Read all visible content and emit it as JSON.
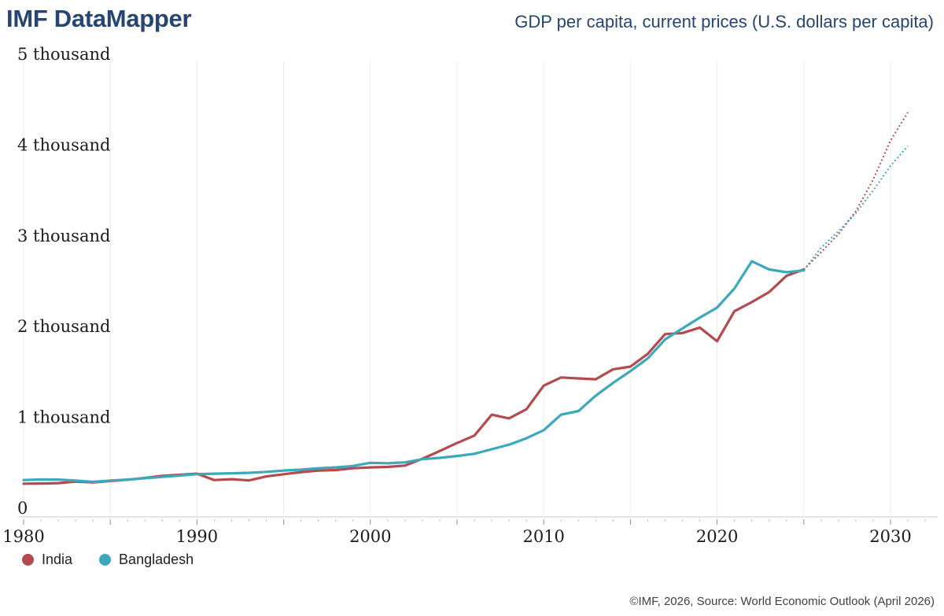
{
  "header": {
    "app_title": "IMF DataMapper",
    "chart_title": "GDP per capita, current prices (U.S. dollars per capita)"
  },
  "legend": {
    "items": [
      {
        "label": "India",
        "color": "#b34a4f"
      },
      {
        "label": "Bangladesh",
        "color": "#3ba8bc"
      }
    ]
  },
  "footer": {
    "source": "©IMF, 2026, Source: World Economic Outlook (April 2026)"
  },
  "chart_data": {
    "type": "line",
    "title": "GDP per capita, current prices (U.S. dollars per capita)",
    "units": "U.S. dollars per capita",
    "grid": "vertical-only",
    "legend_position": "bottom-left",
    "ylim": [
      0,
      5000
    ],
    "y_ticks": [
      {
        "value": 0,
        "label": "0"
      },
      {
        "value": 1000,
        "label": "1 thousand"
      },
      {
        "value": 2000,
        "label": "2 thousand"
      },
      {
        "value": 3000,
        "label": "3 thousand"
      },
      {
        "value": 4000,
        "label": "4 thousand"
      },
      {
        "value": 5000,
        "label": "5 thousand"
      }
    ],
    "x_tick_labels": [
      1980,
      1990,
      2000,
      2010,
      2020,
      2030
    ],
    "gridline_years": [
      1980,
      1985,
      1990,
      1995,
      2000,
      2005,
      2010,
      2015,
      2020,
      2025,
      2030
    ],
    "projection_style": "dotted",
    "x": [
      1980,
      1981,
      1982,
      1983,
      1984,
      1985,
      1986,
      1987,
      1988,
      1989,
      1990,
      1991,
      1992,
      1993,
      1994,
      1995,
      1996,
      1997,
      1998,
      1999,
      2000,
      2001,
      2002,
      2003,
      2004,
      2005,
      2006,
      2007,
      2008,
      2009,
      2010,
      2011,
      2012,
      2013,
      2014,
      2015,
      2016,
      2017,
      2018,
      2019,
      2020,
      2021,
      2022,
      2023,
      2024,
      2025,
      2026,
      2027,
      2028,
      2029,
      2030,
      2031
    ],
    "series": [
      {
        "name": "India",
        "color": "#b34a4f",
        "solid_until": 2025,
        "values": [
          270,
          272,
          276,
          294,
          284,
          300,
          314,
          334,
          356,
          368,
          380,
          310,
          320,
          306,
          350,
          374,
          398,
          415,
          420,
          440,
          450,
          455,
          470,
          545,
          630,
          718,
          800,
          1030,
          990,
          1090,
          1350,
          1440,
          1430,
          1420,
          1530,
          1560,
          1700,
          1918,
          1930,
          1990,
          1840,
          2170,
          2270,
          2380,
          2560,
          2630,
          2820,
          3020,
          3270,
          3620,
          4050,
          4360
        ]
      },
      {
        "name": "Bangladesh",
        "color": "#3ba8bc",
        "solid_until": 2025,
        "values": [
          310,
          316,
          315,
          304,
          290,
          305,
          315,
          330,
          345,
          360,
          375,
          380,
          385,
          390,
          400,
          415,
          425,
          440,
          450,
          465,
          500,
          495,
          505,
          540,
          555,
          575,
          600,
          650,
          700,
          770,
          860,
          1030,
          1070,
          1240,
          1380,
          1510,
          1650,
          1860,
          1980,
          2100,
          2210,
          2420,
          2720,
          2630,
          2600,
          2620,
          2870,
          3050,
          3250,
          3500,
          3770,
          3990
        ]
      }
    ]
  }
}
